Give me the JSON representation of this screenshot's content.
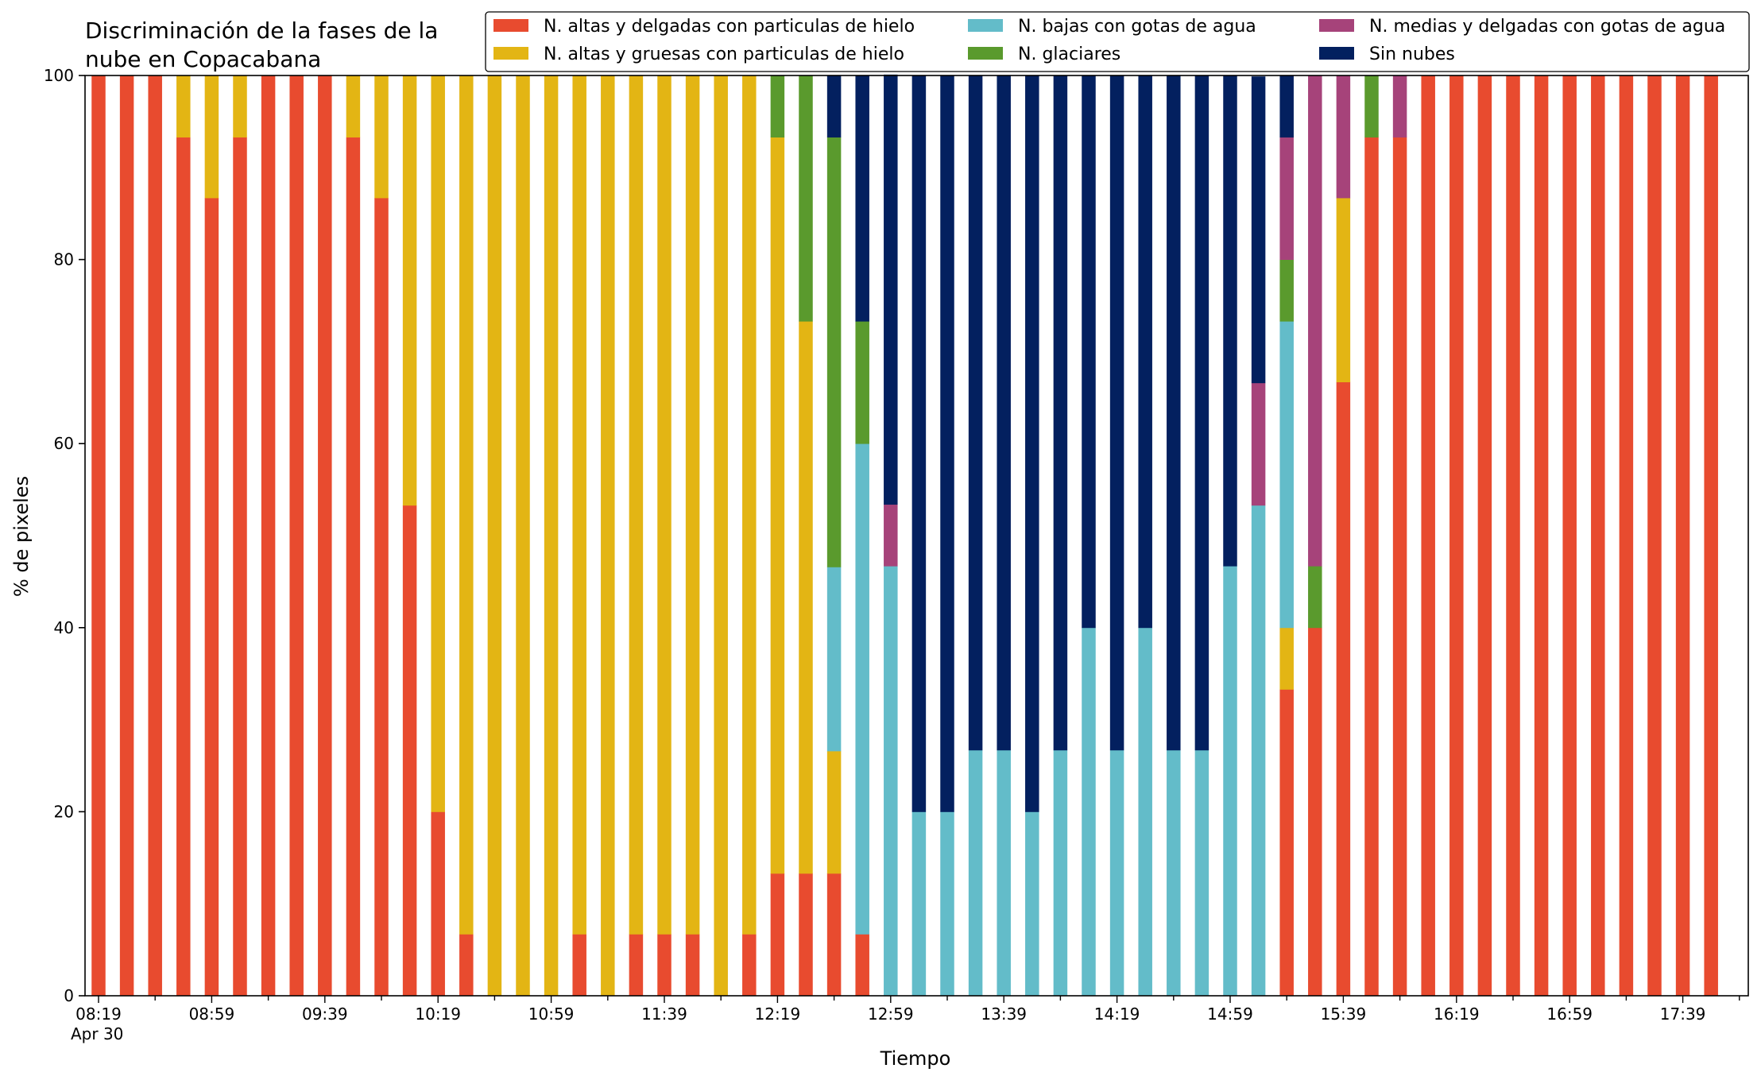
{
  "chart_data": {
    "type": "bar",
    "stacked": true,
    "title_lines": [
      "Discriminación de la fases de la",
      "nube en Copacabana"
    ],
    "xlabel": "Tiempo",
    "ylabel": "% de pixeles",
    "ylim": [
      0,
      100
    ],
    "yticks": [
      0,
      20,
      40,
      60,
      80,
      100
    ],
    "xtick_labels": [
      "08:19",
      "08:59",
      "09:39",
      "10:19",
      "10:59",
      "11:39",
      "12:19",
      "12:59",
      "13:39",
      "14:19",
      "14:59",
      "15:39",
      "16:19",
      "16:59",
      "17:39"
    ],
    "xtick_sublabel": "Apr 30",
    "x_start": "08:19",
    "x_step_minutes": 10,
    "grid": false,
    "legend_placement": "top-right",
    "series": [
      {
        "name": "N. altas y delgadas con particulas de hielo",
        "color": "#E84B2F",
        "values": [
          100,
          100,
          100,
          93.3,
          86.7,
          93.3,
          100,
          100,
          100,
          93.3,
          86.7,
          53.3,
          20,
          6.7,
          0,
          0,
          0,
          6.7,
          0,
          6.7,
          6.7,
          6.7,
          0,
          6.7,
          13.3,
          13.3,
          13.3,
          6.7,
          0,
          0,
          0,
          0,
          0,
          0,
          0,
          0,
          0,
          0,
          0,
          0,
          0,
          0,
          33.3,
          40,
          66.7,
          93.3,
          93.3,
          100,
          100,
          100,
          100,
          100,
          100,
          100,
          100,
          100,
          100,
          100
        ]
      },
      {
        "name": "N. altas y gruesas con particulas de hielo",
        "color": "#E3B514",
        "values": [
          0,
          0,
          0,
          6.7,
          13.3,
          6.7,
          0,
          0,
          0,
          6.7,
          13.3,
          46.7,
          80,
          93.3,
          100,
          100,
          100,
          93.3,
          100,
          93.3,
          93.3,
          93.3,
          100,
          93.3,
          80,
          60,
          13.3,
          0,
          0,
          0,
          0,
          0,
          0,
          0,
          0,
          0,
          0,
          0,
          0,
          0,
          0,
          0,
          6.7,
          0,
          20,
          0,
          0,
          0,
          0,
          0,
          0,
          0,
          0,
          0,
          0,
          0,
          0,
          0
        ]
      },
      {
        "name": "N. bajas con gotas de agua",
        "color": "#63BCC9",
        "values": [
          0,
          0,
          0,
          0,
          0,
          0,
          0,
          0,
          0,
          0,
          0,
          0,
          0,
          0,
          0,
          0,
          0,
          0,
          0,
          0,
          0,
          0,
          0,
          0,
          0,
          0,
          20,
          53.3,
          46.7,
          20,
          20,
          26.7,
          26.7,
          20,
          26.7,
          40,
          26.7,
          40,
          26.7,
          26.7,
          46.7,
          53.3,
          33.3,
          0,
          0,
          0,
          0,
          0,
          0,
          0,
          0,
          0,
          0,
          0,
          0,
          0,
          0,
          0
        ]
      },
      {
        "name": "N. glaciares",
        "color": "#5A9A2D",
        "values": [
          0,
          0,
          0,
          0,
          0,
          0,
          0,
          0,
          0,
          0,
          0,
          0,
          0,
          0,
          0,
          0,
          0,
          0,
          0,
          0,
          0,
          0,
          0,
          0,
          6.7,
          26.7,
          46.7,
          13.3,
          0,
          0,
          0,
          0,
          0,
          0,
          0,
          0,
          0,
          0,
          0,
          0,
          0,
          0,
          6.7,
          6.7,
          0,
          6.7,
          0,
          0,
          0,
          0,
          0,
          0,
          0,
          0,
          0,
          0,
          0,
          0
        ]
      },
      {
        "name": "N. medias y delgadas con gotas de agua",
        "color": "#A6437A",
        "values": [
          0,
          0,
          0,
          0,
          0,
          0,
          0,
          0,
          0,
          0,
          0,
          0,
          0,
          0,
          0,
          0,
          0,
          0,
          0,
          0,
          0,
          0,
          0,
          0,
          0,
          0,
          0,
          0,
          6.7,
          0,
          0,
          0,
          0,
          0,
          0,
          0,
          0,
          0,
          0,
          0,
          0,
          13.3,
          13.3,
          53.3,
          13.3,
          0,
          6.7,
          0,
          0,
          0,
          0,
          0,
          0,
          0,
          0,
          0,
          0,
          0
        ]
      },
      {
        "name": "Sin nubes",
        "color": "#03205F",
        "values": [
          0,
          0,
          0,
          0,
          0,
          0,
          0,
          0,
          0,
          0,
          0,
          0,
          0,
          0,
          0,
          0,
          0,
          0,
          0,
          0,
          0,
          0,
          0,
          0,
          0,
          0,
          6.7,
          26.7,
          46.7,
          80,
          80,
          73.3,
          73.3,
          80,
          73.3,
          60,
          73.3,
          60,
          73.3,
          73.3,
          53.3,
          33.3,
          6.7,
          0,
          0,
          0,
          0,
          0,
          0,
          0,
          0,
          0,
          0,
          0,
          0,
          0,
          0,
          0
        ]
      }
    ]
  }
}
